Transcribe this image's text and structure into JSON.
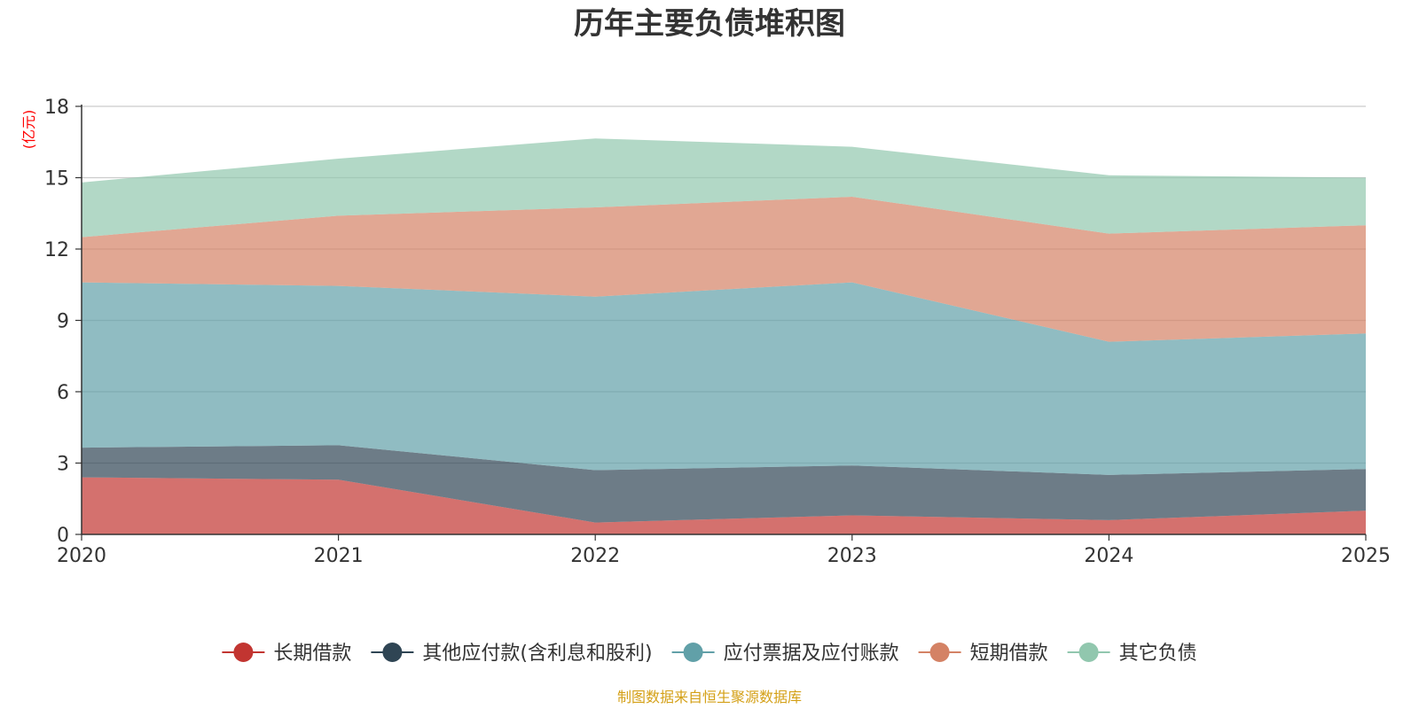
{
  "chart_data": {
    "type": "area",
    "stacked": true,
    "title": "历年主要负债堆积图",
    "ylabel": "(亿元)",
    "xlabel": "",
    "categories": [
      "2020",
      "2021",
      "2022",
      "2023",
      "2024",
      "2025"
    ],
    "ylim": [
      0,
      18
    ],
    "yticks": [
      0,
      3,
      6,
      9,
      12,
      15,
      18
    ],
    "grid": true,
    "legend_position": "bottom",
    "series": [
      {
        "name": "长期借款",
        "color": "#c23531",
        "values": [
          2.4,
          2.3,
          0.5,
          0.8,
          0.6,
          1.0
        ]
      },
      {
        "name": "其他应付款(含利息和股利)",
        "color": "#2f4554",
        "values": [
          1.25,
          1.45,
          2.2,
          2.1,
          1.9,
          1.75
        ]
      },
      {
        "name": "应付票据及应付账款",
        "color": "#61a0a8",
        "values": [
          6.95,
          6.7,
          7.3,
          7.7,
          5.6,
          5.7
        ]
      },
      {
        "name": "短期借款",
        "color": "#d48265",
        "values": [
          1.9,
          2.95,
          3.75,
          3.6,
          4.55,
          4.55
        ]
      },
      {
        "name": "其它负债",
        "color": "#91c7ae",
        "values": [
          2.3,
          2.4,
          2.9,
          2.1,
          2.45,
          2.0
        ]
      }
    ],
    "source": "制图数据来自恒生聚源数据库",
    "source_color": "#d4a017",
    "unit_color": "#ff0000"
  }
}
